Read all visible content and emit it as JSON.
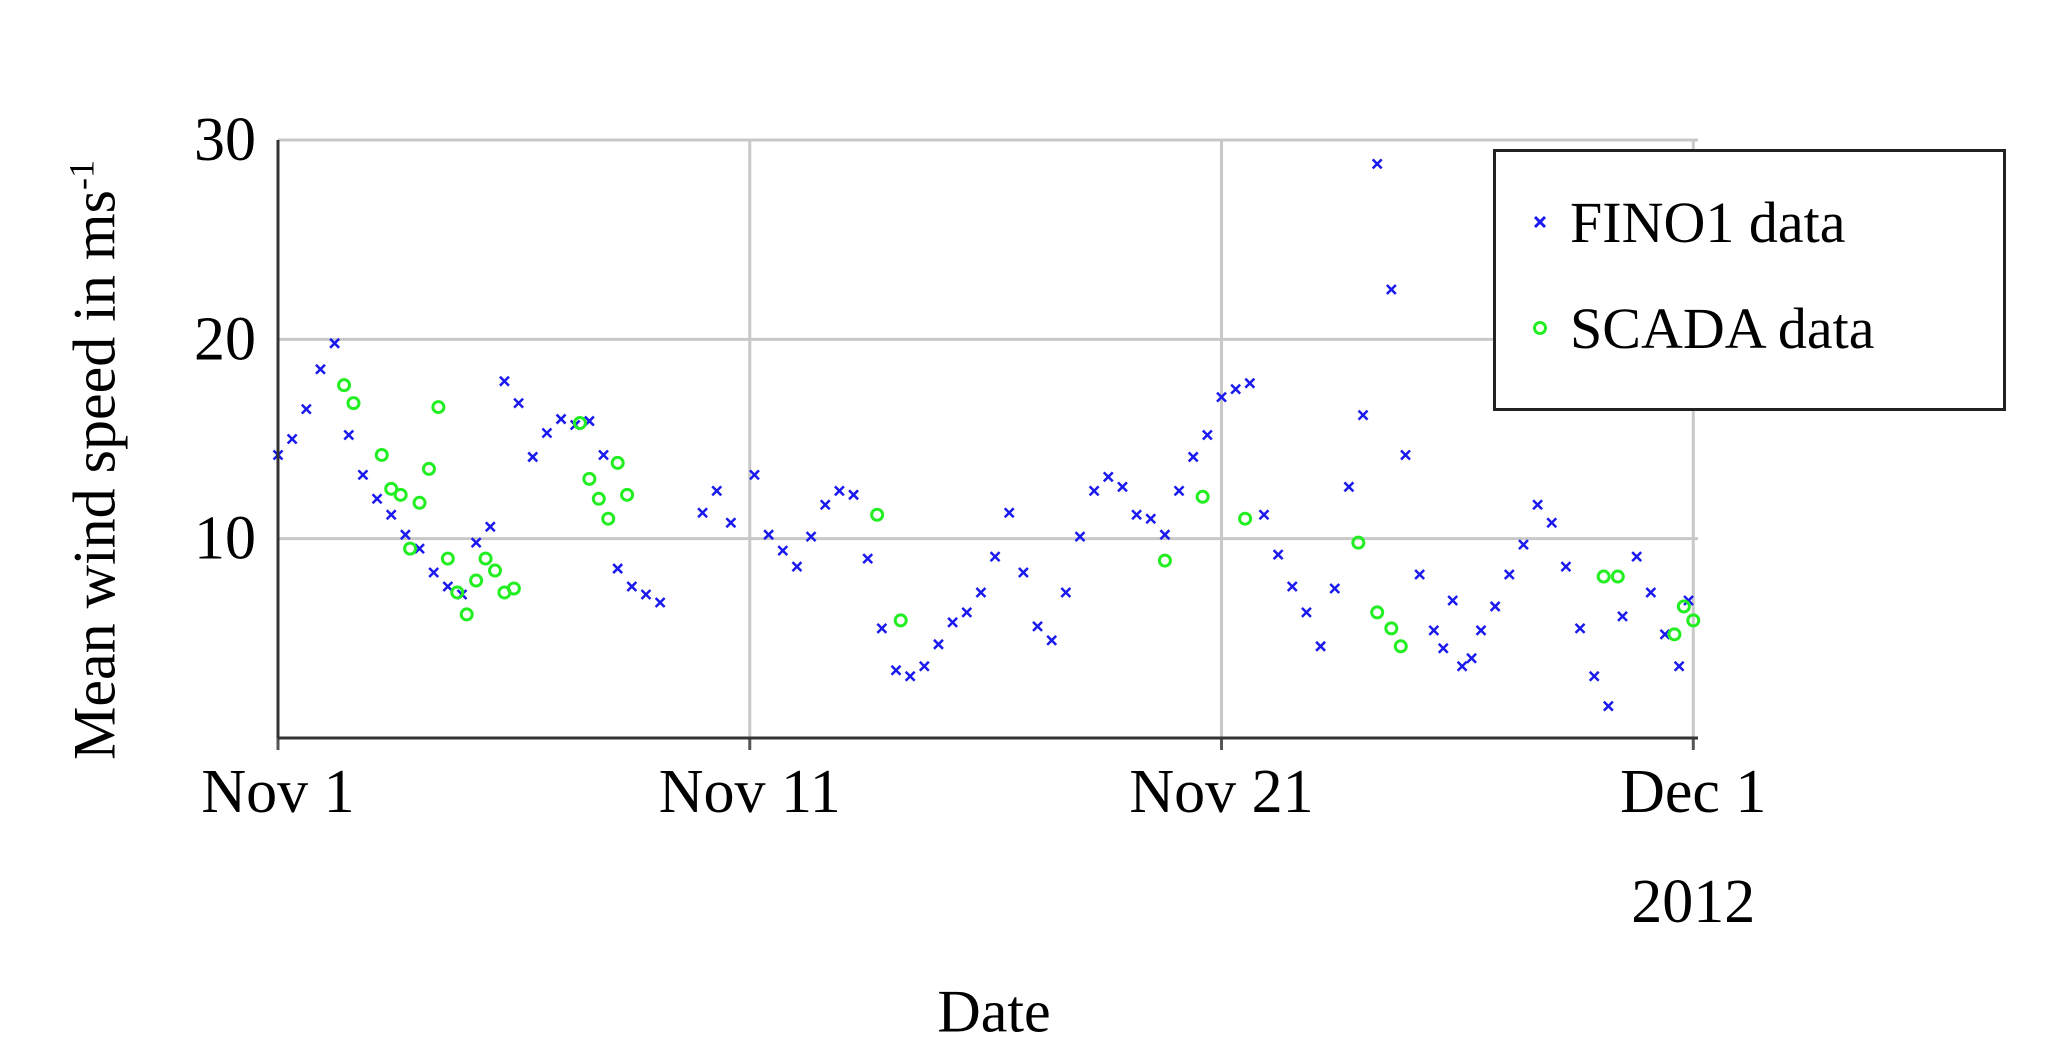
{
  "chart_data": {
    "type": "scatter",
    "title": "",
    "xlabel": "Date",
    "ylabel": "Mean wind speed in ms",
    "ylabel_superscript": "-1",
    "x_unit": "day of November 2012 (Nov 1 = 1)",
    "xlim": [
      1,
      31.1
    ],
    "ylim": [
      0,
      30
    ],
    "grid": true,
    "legend_position": "top-right",
    "x_ticks": [
      {
        "value": 1,
        "label": "Nov 1"
      },
      {
        "value": 11,
        "label": "Nov 11"
      },
      {
        "value": 21,
        "label": "Nov 21"
      },
      {
        "value": 31,
        "label": "Dec 1",
        "sublabel": "2012"
      }
    ],
    "y_ticks": [
      {
        "value": 10,
        "label": "10"
      },
      {
        "value": 20,
        "label": "20"
      },
      {
        "value": 30,
        "label": "30"
      }
    ],
    "series": [
      {
        "name": "FINO1 data",
        "marker": "x",
        "color": "#1a1aee",
        "x": [
          1.0,
          1.3,
          1.6,
          1.9,
          2.2,
          2.5,
          2.8,
          3.1,
          3.4,
          3.7,
          4.0,
          4.3,
          4.6,
          4.9,
          5.2,
          5.5,
          5.8,
          6.1,
          6.4,
          6.7,
          7.0,
          7.3,
          7.6,
          7.9,
          8.2,
          8.5,
          8.8,
          9.1,
          10.0,
          10.3,
          10.6,
          11.1,
          11.4,
          11.7,
          12.0,
          12.3,
          12.6,
          12.9,
          13.2,
          13.5,
          13.8,
          14.1,
          14.4,
          14.7,
          15.0,
          15.3,
          15.6,
          15.9,
          16.2,
          16.5,
          16.8,
          17.1,
          17.4,
          17.7,
          18.0,
          18.3,
          18.6,
          18.9,
          19.2,
          19.5,
          19.8,
          20.1,
          20.4,
          20.7,
          21.0,
          21.3,
          21.6,
          21.9,
          22.2,
          22.5,
          22.8,
          23.1,
          23.4,
          23.7,
          24.0,
          24.3,
          24.6,
          24.9,
          25.2,
          25.5,
          25.7,
          25.9,
          26.1,
          26.3,
          26.5,
          26.8,
          27.1,
          27.4,
          27.7,
          28.0,
          28.3,
          28.6,
          28.9,
          29.2,
          29.5,
          29.8,
          30.1,
          30.4,
          30.7,
          30.9
        ],
        "y": [
          14.2,
          15.0,
          16.5,
          18.5,
          19.8,
          15.2,
          13.2,
          12.0,
          11.2,
          10.2,
          9.5,
          8.3,
          7.6,
          7.2,
          9.8,
          10.6,
          17.9,
          16.8,
          14.1,
          15.3,
          16.0,
          15.7,
          15.9,
          14.2,
          8.5,
          7.6,
          7.2,
          6.8,
          11.3,
          12.4,
          10.8,
          13.2,
          10.2,
          9.4,
          8.6,
          10.1,
          11.7,
          12.4,
          12.2,
          9.0,
          5.5,
          3.4,
          3.1,
          3.6,
          4.7,
          5.8,
          6.3,
          7.3,
          9.1,
          11.3,
          8.3,
          5.6,
          4.9,
          7.3,
          10.1,
          12.4,
          13.1,
          12.6,
          11.2,
          11.0,
          10.2,
          12.4,
          14.1,
          15.2,
          17.1,
          17.5,
          17.8,
          11.2,
          9.2,
          7.6,
          6.3,
          4.6,
          7.5,
          12.6,
          16.2,
          28.8,
          22.5,
          14.2,
          8.2,
          5.4,
          4.5,
          6.9,
          3.6,
          4.0,
          5.4,
          6.6,
          8.2,
          9.7,
          11.7,
          10.8,
          8.6,
          5.5,
          3.1,
          1.6,
          6.1,
          9.1,
          7.3,
          5.2,
          3.6,
          6.9
        ]
      },
      {
        "name": "SCADA data",
        "marker": "o",
        "color": "#22ee22",
        "x": [
          2.4,
          2.6,
          3.2,
          3.4,
          3.6,
          3.8,
          4.0,
          4.2,
          4.4,
          4.6,
          4.8,
          5.0,
          5.2,
          5.4,
          5.6,
          5.8,
          6.0,
          7.4,
          7.6,
          7.8,
          8.0,
          8.2,
          8.4,
          13.7,
          14.2,
          19.8,
          20.6,
          21.5,
          23.9,
          24.3,
          24.6,
          24.8,
          29.1,
          29.4,
          30.6,
          30.8,
          31.0
        ],
        "y": [
          17.7,
          16.8,
          14.2,
          12.5,
          12.2,
          9.5,
          11.8,
          13.5,
          16.6,
          9.0,
          7.3,
          6.2,
          7.9,
          9.0,
          8.4,
          7.3,
          7.5,
          15.8,
          13.0,
          12.0,
          11.0,
          13.8,
          12.2,
          11.2,
          5.9,
          8.9,
          12.1,
          11.0,
          9.8,
          6.3,
          5.5,
          4.6,
          8.1,
          8.1,
          5.2,
          6.6,
          5.9
        ]
      }
    ]
  }
}
